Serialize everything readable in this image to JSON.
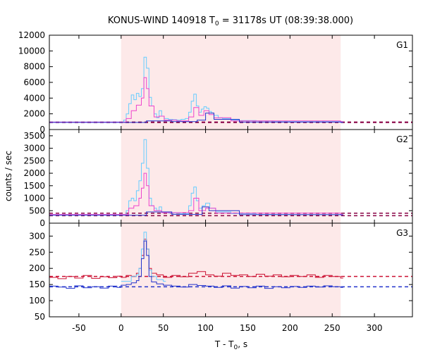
{
  "chart_data": {
    "type": "line",
    "title_prefix": "KONUS-WIND 140918 T",
    "title_sub": "0",
    "title_suffix": " = 31178s UT (08:39:38.000)",
    "ylabel": "counts / sec",
    "xlabel_prefix": "T - T",
    "xlabel_sub": "0",
    "xlabel_suffix": ", s",
    "xlim": [
      -85,
      345
    ],
    "xticks": [
      -50,
      0,
      50,
      100,
      150,
      200,
      250,
      300
    ],
    "highlight_interval": [
      0,
      260
    ],
    "colors": {
      "highlight": "#fde9e9",
      "cyan_series": "#66ccff",
      "magenta_series": "#ee44cc",
      "blue_series": "#2233cc",
      "red_series": "#cc1133",
      "background_fit": "#880044"
    },
    "panels": [
      {
        "label": "G1",
        "ylim": [
          0,
          12000
        ],
        "yticks": [
          0,
          2000,
          4000,
          6000,
          8000,
          10000,
          12000
        ],
        "background_levels": [
          900,
          950
        ],
        "series": [
          {
            "name": "cyan",
            "color": "#66ccff",
            "points": [
              [
                -85,
                950
              ],
              [
                0,
                950
              ],
              [
                3,
                1200
              ],
              [
                6,
                2000
              ],
              [
                9,
                3300
              ],
              [
                12,
                4400
              ],
              [
                15,
                3800
              ],
              [
                18,
                4600
              ],
              [
                21,
                4200
              ],
              [
                24,
                5200
              ],
              [
                27,
                9200
              ],
              [
                30,
                7800
              ],
              [
                33,
                4100
              ],
              [
                36,
                3000
              ],
              [
                39,
                2000
              ],
              [
                42,
                1500
              ],
              [
                45,
                2400
              ],
              [
                48,
                1700
              ],
              [
                51,
                1400
              ],
              [
                56,
                1300
              ],
              [
                61,
                1250
              ],
              [
                66,
                1200
              ],
              [
                71,
                1300
              ],
              [
                76,
                1400
              ],
              [
                80,
                2200
              ],
              [
                83,
                3600
              ],
              [
                86,
                4500
              ],
              [
                89,
                3000
              ],
              [
                92,
                2200
              ],
              [
                95,
                2600
              ],
              [
                98,
                2900
              ],
              [
                101,
                2700
              ],
              [
                104,
                2300
              ],
              [
                107,
                2100
              ],
              [
                110,
                1800
              ],
              [
                115,
                1500
              ],
              [
                120,
                1400
              ],
              [
                130,
                1200
              ],
              [
                140,
                1150
              ],
              [
                160,
                1100
              ],
              [
                180,
                1050
              ],
              [
                200,
                1000
              ],
              [
                220,
                1050
              ],
              [
                240,
                1000
              ],
              [
                260,
                1000
              ]
            ]
          },
          {
            "name": "magenta",
            "color": "#ee44cc",
            "points": [
              [
                -85,
                950
              ],
              [
                0,
                950
              ],
              [
                6,
                1400
              ],
              [
                12,
                2400
              ],
              [
                18,
                3100
              ],
              [
                24,
                4000
              ],
              [
                27,
                6600
              ],
              [
                30,
                5200
              ],
              [
                33,
                3000
              ],
              [
                39,
                1600
              ],
              [
                45,
                1700
              ],
              [
                51,
                1200
              ],
              [
                66,
                1100
              ],
              [
                80,
                1600
              ],
              [
                86,
                2800
              ],
              [
                92,
                1800
              ],
              [
                98,
                2400
              ],
              [
                104,
                1900
              ],
              [
                110,
                1500
              ],
              [
                130,
                1100
              ],
              [
                260,
                1000
              ]
            ]
          },
          {
            "name": "blue",
            "color": "#2233cc",
            "points": [
              [
                -85,
                900
              ],
              [
                0,
                900
              ],
              [
                30,
                1100
              ],
              [
                60,
                1000
              ],
              [
                90,
                1200
              ],
              [
                100,
                2100
              ],
              [
                110,
                1300
              ],
              [
                140,
                950
              ],
              [
                260,
                900
              ]
            ]
          }
        ]
      },
      {
        "label": "G2",
        "ylim": [
          0,
          3750
        ],
        "yticks": [
          0,
          500,
          1000,
          1500,
          2000,
          2500,
          3000,
          3500
        ],
        "background_levels": [
          300,
          400
        ],
        "series": [
          {
            "name": "cyan",
            "color": "#66ccff",
            "points": [
              [
                -85,
                350
              ],
              [
                0,
                350
              ],
              [
                6,
                500
              ],
              [
                9,
                900
              ],
              [
                12,
                1000
              ],
              [
                15,
                900
              ],
              [
                18,
                1300
              ],
              [
                21,
                1700
              ],
              [
                24,
                2400
              ],
              [
                27,
                3350
              ],
              [
                30,
                2200
              ],
              [
                33,
                1000
              ],
              [
                36,
                700
              ],
              [
                39,
                600
              ],
              [
                42,
                500
              ],
              [
                45,
                650
              ],
              [
                48,
                450
              ],
              [
                56,
                400
              ],
              [
                70,
                380
              ],
              [
                80,
                700
              ],
              [
                83,
                1200
              ],
              [
                86,
                1450
              ],
              [
                89,
                900
              ],
              [
                92,
                600
              ],
              [
                96,
                700
              ],
              [
                100,
                800
              ],
              [
                105,
                600
              ],
              [
                112,
                450
              ],
              [
                130,
                380
              ],
              [
                160,
                350
              ],
              [
                200,
                340
              ],
              [
                230,
                340
              ],
              [
                260,
                350
              ]
            ]
          },
          {
            "name": "magenta",
            "color": "#ee44cc",
            "points": [
              [
                -85,
                350
              ],
              [
                0,
                350
              ],
              [
                9,
                600
              ],
              [
                15,
                700
              ],
              [
                21,
                1000
              ],
              [
                24,
                1400
              ],
              [
                27,
                2000
              ],
              [
                30,
                1500
              ],
              [
                33,
                700
              ],
              [
                39,
                500
              ],
              [
                48,
                420
              ],
              [
                80,
                500
              ],
              [
                86,
                1000
              ],
              [
                92,
                500
              ],
              [
                100,
                600
              ],
              [
                112,
                400
              ],
              [
                260,
                350
              ]
            ]
          },
          {
            "name": "blue",
            "color": "#2233cc",
            "points": [
              [
                -85,
                320
              ],
              [
                0,
                320
              ],
              [
                30,
                450
              ],
              [
                60,
                350
              ],
              [
                96,
                650
              ],
              [
                104,
                500
              ],
              [
                140,
                340
              ],
              [
                260,
                330
              ]
            ]
          }
        ]
      },
      {
        "label": "G3",
        "ylim": [
          50,
          340
        ],
        "yticks": [
          50,
          100,
          150,
          200,
          250,
          300
        ],
        "background_levels": [
          143,
          175
        ],
        "series": [
          {
            "name": "red",
            "color": "#cc1133",
            "points": [
              [
                -85,
                172
              ],
              [
                -75,
                168
              ],
              [
                -65,
                175
              ],
              [
                -55,
                170
              ],
              [
                -45,
                178
              ],
              [
                -35,
                169
              ],
              [
                -25,
                174
              ],
              [
                -15,
                171
              ],
              [
                -5,
                176
              ],
              [
                0,
                172
              ],
              [
                6,
                178
              ],
              [
                12,
                175
              ],
              [
                18,
                185
              ],
              [
                21,
                200
              ],
              [
                24,
                240
              ],
              [
                27,
                290
              ],
              [
                30,
                260
              ],
              [
                33,
                200
              ],
              [
                36,
                185
              ],
              [
                42,
                180
              ],
              [
                50,
                172
              ],
              [
                60,
                178
              ],
              [
                70,
                174
              ],
              [
                80,
                185
              ],
              [
                90,
                190
              ],
              [
                100,
                180
              ],
              [
                110,
                176
              ],
              [
                120,
                185
              ],
              [
                130,
                178
              ],
              [
                140,
                180
              ],
              [
                150,
                175
              ],
              [
                160,
                182
              ],
              [
                170,
                176
              ],
              [
                180,
                180
              ],
              [
                190,
                174
              ],
              [
                200,
                178
              ],
              [
                210,
                175
              ],
              [
                220,
                180
              ],
              [
                230,
                172
              ],
              [
                240,
                178
              ],
              [
                250,
                175
              ],
              [
                260,
                170
              ]
            ]
          },
          {
            "name": "cyan",
            "color": "#66ccff",
            "points": [
              [
                0,
                160
              ],
              [
                12,
                175
              ],
              [
                18,
                180
              ],
              [
                21,
                200
              ],
              [
                24,
                260
              ],
              [
                27,
                312
              ],
              [
                30,
                260
              ],
              [
                33,
                195
              ],
              [
                36,
                175
              ],
              [
                42,
                165
              ],
              [
                50,
                160
              ]
            ]
          },
          {
            "name": "blue",
            "color": "#2233cc",
            "points": [
              [
                -85,
                145
              ],
              [
                -75,
                142
              ],
              [
                -65,
                138
              ],
              [
                -55,
                146
              ],
              [
                -45,
                140
              ],
              [
                -35,
                143
              ],
              [
                -25,
                139
              ],
              [
                -15,
                145
              ],
              [
                -5,
                141
              ],
              [
                0,
                148
              ],
              [
                6,
                150
              ],
              [
                12,
                155
              ],
              [
                18,
                162
              ],
              [
                21,
                175
              ],
              [
                24,
                230
              ],
              [
                27,
                285
              ],
              [
                30,
                240
              ],
              [
                33,
                175
              ],
              [
                36,
                158
              ],
              [
                42,
                152
              ],
              [
                50,
                148
              ],
              [
                60,
                145
              ],
              [
                70,
                142
              ],
              [
                80,
                150
              ],
              [
                90,
                147
              ],
              [
                100,
                145
              ],
              [
                110,
                141
              ],
              [
                120,
                146
              ],
              [
                130,
                139
              ],
              [
                140,
                144
              ],
              [
                150,
                140
              ],
              [
                160,
                145
              ],
              [
                170,
                138
              ],
              [
                180,
                143
              ],
              [
                190,
                140
              ],
              [
                200,
                144
              ],
              [
                210,
                141
              ],
              [
                220,
                145
              ],
              [
                230,
                142
              ],
              [
                240,
                146
              ],
              [
                250,
                143
              ],
              [
                260,
                141
              ]
            ]
          }
        ]
      }
    ]
  }
}
